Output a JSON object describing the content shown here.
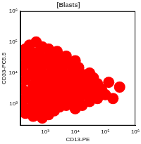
{
  "chart_data": {
    "type": "scatter",
    "title": "[Blasts]",
    "x_label": "CD13-PE",
    "y_label": "CD33-PC5.5",
    "color": "#ff0000",
    "marker": "circle",
    "log": true,
    "grid": false,
    "xlim": [
      150,
      1000000
    ],
    "ylim": [
      200,
      1000000
    ],
    "xticks": [
      {
        "value": 1000,
        "label": "10³"
      },
      {
        "value": 10000,
        "label": "10⁴"
      },
      {
        "value": 100000,
        "label": "10⁵"
      },
      {
        "value": 1000000,
        "label": "10⁶"
      }
    ],
    "yticks": [
      {
        "value": 1000,
        "label": "10³"
      },
      {
        "value": 10000,
        "label": "10⁴"
      },
      {
        "value": 100000,
        "label": "10⁵"
      },
      {
        "value": 1000000,
        "label": "10⁶"
      }
    ],
    "x": [
      170,
      170,
      170,
      170,
      220,
      220,
      220,
      220,
      220,
      300,
      300,
      300,
      300,
      300,
      400,
      400,
      400,
      400,
      400,
      500,
      500,
      500,
      500,
      500,
      650,
      650,
      650,
      650,
      800,
      800,
      800,
      800,
      800,
      1000,
      1000,
      1000,
      1000,
      1300,
      1300,
      1300,
      1300,
      1300,
      1600,
      1600,
      1600,
      1600,
      2000,
      2000,
      2000,
      2000,
      2500,
      2500,
      2500,
      2500,
      3000,
      3000,
      3000,
      3000,
      4000,
      4000,
      4000,
      5000,
      5000,
      5000,
      5000,
      6500,
      6500,
      6500,
      8000,
      8000,
      8000,
      10000,
      10000,
      10000,
      10000,
      13000,
      13000,
      13000,
      17000,
      17000,
      17000,
      22000,
      22000,
      30000,
      30000,
      30000,
      40000,
      40000,
      55000,
      55000,
      75000,
      100000,
      130000,
      180000,
      300000
    ],
    "values": [
      800,
      3000,
      12000,
      40000,
      500,
      1500,
      6000,
      20000,
      60000,
      700,
      2500,
      9000,
      30000,
      80000,
      400,
      1200,
      4000,
      15000,
      45000,
      900,
      2000,
      7000,
      25000,
      100000,
      600,
      3500,
      12000,
      50000,
      350,
      1500,
      5000,
      18000,
      70000,
      800,
      2500,
      9000,
      30000,
      450,
      1800,
      6000,
      20000,
      60000,
      1000,
      3500,
      12000,
      40000,
      600,
      2200,
      8000,
      25000,
      1400,
      4500,
      15000,
      50000,
      800,
      3000,
      10000,
      30000,
      1500,
      5500,
      18000,
      900,
      3000,
      9000,
      35000,
      2000,
      6000,
      20000,
      1200,
      4000,
      12000,
      700,
      2500,
      8000,
      25000,
      1500,
      5000,
      15000,
      900,
      3000,
      9000,
      2000,
      6000,
      1200,
      4000,
      10000,
      2500,
      7000,
      1500,
      4500,
      3000,
      2000,
      5000,
      1500,
      3500
    ]
  }
}
